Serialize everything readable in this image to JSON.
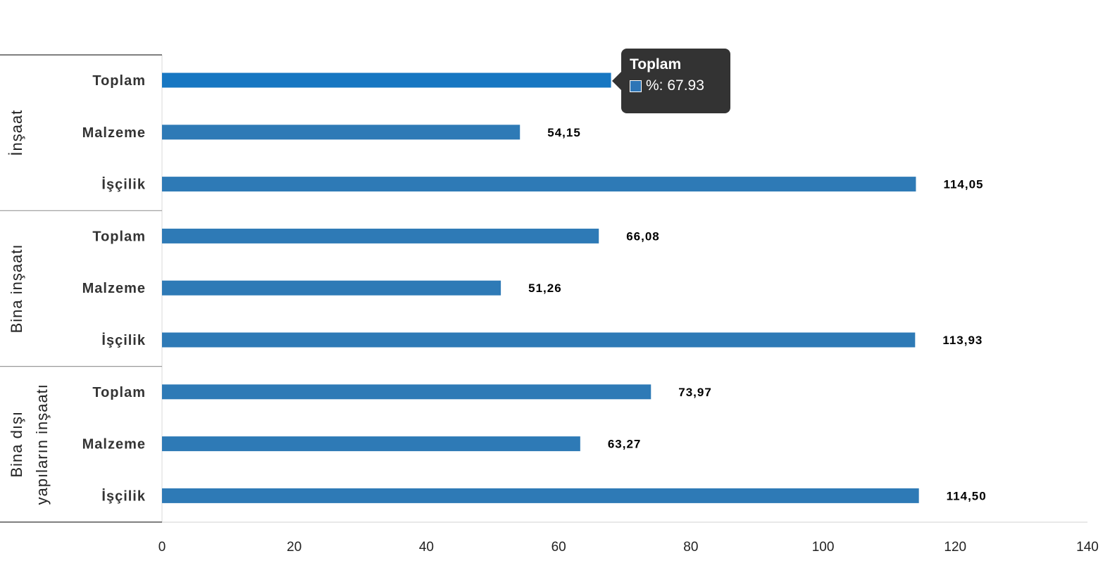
{
  "chart_data": {
    "type": "bar",
    "orientation": "horizontal",
    "xlim": [
      0,
      140
    ],
    "x_ticks": [
      "0",
      "20",
      "40",
      "60",
      "80",
      "100",
      "120",
      "140"
    ],
    "grid": false,
    "groups": [
      {
        "name": "İnşaat",
        "items": [
          {
            "category": "Toplam",
            "value": 67.93,
            "label": "67,93"
          },
          {
            "category": "Malzeme",
            "value": 54.15,
            "label": "54,15"
          },
          {
            "category": "İşçilik",
            "value": 114.05,
            "label": "114,05"
          }
        ]
      },
      {
        "name": "Bina inşaatı",
        "items": [
          {
            "category": "Toplam",
            "value": 66.08,
            "label": "66,08"
          },
          {
            "category": "Malzeme",
            "value": 51.26,
            "label": "51,26"
          },
          {
            "category": "İşçilik",
            "value": 113.93,
            "label": "113,93"
          }
        ]
      },
      {
        "name": [
          "Bina dışı",
          "yapıların inşaatı"
        ],
        "items": [
          {
            "category": "Toplam",
            "value": 73.97,
            "label": "73,97"
          },
          {
            "category": "Malzeme",
            "value": 63.27,
            "label": "63,27"
          },
          {
            "category": "İşçilik",
            "value": 114.5,
            "label": "114,50"
          }
        ]
      }
    ],
    "colors": {
      "bar": "#2e7ab6",
      "bar_highlight": "#1777c2"
    },
    "highlighted": {
      "group": 0,
      "item": 0
    }
  },
  "tooltip": {
    "title": "Toplam",
    "series_label": "%",
    "value_text": "%: 67.93"
  }
}
